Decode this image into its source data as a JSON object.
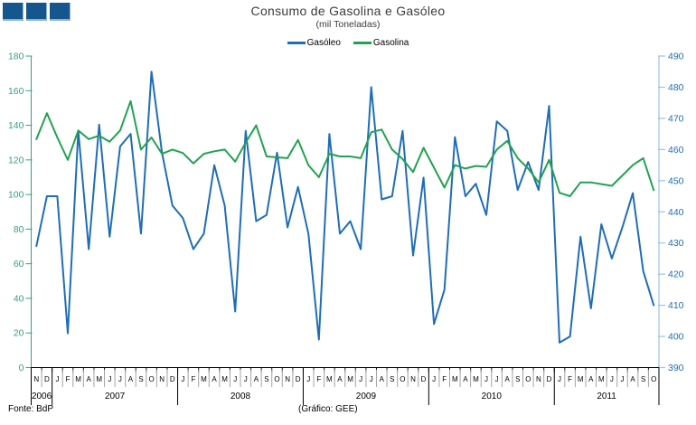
{
  "header": {
    "title": "Consumo de Gasolina e Gasóleo",
    "subtitle": "(mil Toneladas)"
  },
  "legend": [
    {
      "label": "Gasóleo",
      "color": "#1F6EB5"
    },
    {
      "label": "Gasolina",
      "color": "#22A24F"
    }
  ],
  "footer": {
    "source": "Fonte: BdP",
    "credit": "(Gráfico: GEE)"
  },
  "logo": {
    "square_count": 3,
    "fill": "#15568E",
    "edge": "#8FB2D4"
  },
  "chart_data": {
    "type": "line",
    "title": "Consumo de Gasolina e Gasóleo",
    "subtitle": "(mil Toneladas)",
    "grid": false,
    "legend_position": "top-center",
    "month_labels": [
      "N",
      "D",
      "J",
      "F",
      "M",
      "A",
      "M",
      "J",
      "J",
      "A",
      "S",
      "O",
      "N",
      "D",
      "J",
      "F",
      "M",
      "A",
      "M",
      "J",
      "J",
      "A",
      "S",
      "O",
      "N",
      "D",
      "J",
      "F",
      "M",
      "A",
      "M",
      "J",
      "J",
      "A",
      "S",
      "O",
      "N",
      "D",
      "J",
      "F",
      "M",
      "A",
      "M",
      "J",
      "J",
      "A",
      "S",
      "O",
      "N",
      "D",
      "J",
      "F",
      "M",
      "A",
      "M",
      "J",
      "J",
      "A",
      "S",
      "O"
    ],
    "years": [
      {
        "label": "2006",
        "months": 2
      },
      {
        "label": "2007",
        "months": 12
      },
      {
        "label": "2008",
        "months": 12
      },
      {
        "label": "2009",
        "months": 12
      },
      {
        "label": "2010",
        "months": 12
      },
      {
        "label": "2011",
        "months": 10
      }
    ],
    "left_axis": {
      "min": 0,
      "max": 180,
      "step": 20,
      "label_color": "#33A379",
      "line_color": "#33A379"
    },
    "right_axis": {
      "min": 390,
      "max": 490,
      "step": 10,
      "label_color": "#1F6EB5",
      "line_color": "#9DC3E6"
    },
    "series": [
      {
        "name": "Gasóleo",
        "axis": "right",
        "color": "#1F6EB5",
        "values": [
          429,
          445,
          445,
          401,
          466,
          428,
          468,
          432,
          461,
          465,
          433,
          485,
          459,
          442,
          438,
          428,
          433,
          455,
          442,
          408,
          466,
          437,
          439,
          459,
          435,
          448,
          433,
          399,
          465,
          433,
          437,
          428,
          480,
          444,
          445,
          466,
          426,
          451,
          404,
          415,
          464,
          445,
          449,
          439,
          469,
          466,
          447,
          456,
          447,
          474,
          398,
          400,
          432,
          409,
          436,
          425,
          435,
          446,
          421,
          410
        ]
      },
      {
        "name": "Gasolina",
        "axis": "left",
        "color": "#22A24F",
        "values": [
          132,
          147,
          133,
          120,
          137,
          132,
          134,
          130.5,
          137,
          154,
          126,
          133,
          123.5,
          126,
          124,
          118,
          123.5,
          125,
          126,
          119,
          130,
          140,
          122,
          121.5,
          121,
          131.5,
          117,
          110,
          123.5,
          122,
          122,
          121,
          136,
          137.5,
          126,
          120.5,
          113,
          127,
          115.5,
          104,
          117,
          115,
          116.5,
          116,
          126,
          131,
          121,
          115,
          107,
          120,
          101,
          99,
          107,
          107,
          106,
          105,
          111,
          117,
          121,
          102.5
        ]
      }
    ],
    "x_tick_color": "#000000",
    "month_separator_color": "#A3A3A3",
    "year_separator_color": "#000000"
  }
}
